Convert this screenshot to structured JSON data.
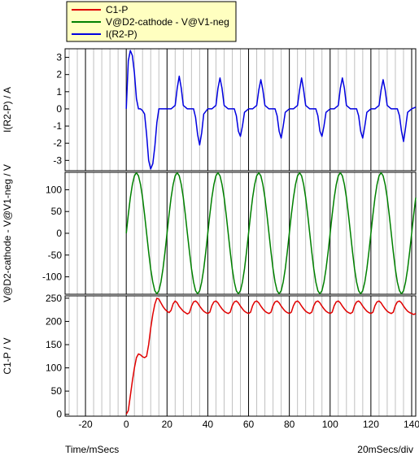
{
  "colors": {
    "c1p": "#e00000",
    "vdiff": "#008000",
    "ir2p": "#0000e0",
    "grid": "#c0c0c0",
    "legend_bg": "#ffffc0"
  },
  "legend": {
    "entries": [
      "C1-P",
      "V@D2-cathode - V@V1-neg",
      "I(R2-P)"
    ]
  },
  "footer": {
    "left": "Time/mSecs",
    "right": "20mSecs/div"
  },
  "chart_data": [
    {
      "type": "line",
      "ylabel": "I(R2-P) / A",
      "xlim": [
        -30,
        142
      ],
      "ylim": [
        -3.6,
        3.5
      ],
      "xticks": [
        -20,
        0,
        20,
        40,
        60,
        80,
        100,
        120,
        140
      ],
      "yticks": [
        -3,
        -2,
        -1,
        0,
        1,
        2,
        3
      ],
      "series": [
        {
          "name": "I(R2-P)",
          "color_key": "ir2p",
          "x": [
            0,
            1,
            2,
            3,
            4,
            5,
            6,
            7,
            8,
            9,
            10,
            11,
            12,
            13,
            14,
            15,
            16,
            17,
            18,
            20,
            22,
            24,
            25,
            26,
            27,
            28,
            30,
            32,
            33,
            34,
            35,
            36,
            37,
            38,
            40,
            42,
            44,
            45,
            46,
            47,
            48,
            50,
            52,
            53,
            54,
            55,
            56,
            57,
            58,
            60,
            62,
            64,
            65,
            66,
            67,
            68,
            70,
            72,
            73,
            74,
            75,
            76,
            77,
            78,
            80,
            82,
            84,
            85,
            86,
            87,
            88,
            90,
            92,
            93,
            94,
            95,
            96,
            97,
            98,
            100,
            102,
            104,
            105,
            106,
            107,
            108,
            110,
            112,
            113,
            114,
            115,
            116,
            117,
            118,
            120,
            122,
            124,
            125,
            126,
            127,
            128,
            130,
            132,
            133,
            134,
            135,
            136,
            137,
            138,
            140,
            142
          ],
          "values": [
            0,
            2.8,
            3.4,
            3.1,
            2.1,
            0.6,
            0,
            0,
            -0.1,
            -0.3,
            -1.5,
            -3.0,
            -3.5,
            -3.2,
            -2.2,
            -0.8,
            0,
            0,
            0,
            0,
            0,
            0.2,
            1.2,
            1.9,
            1.2,
            0.2,
            0,
            0,
            0,
            -0.5,
            -1.5,
            -2.1,
            -1.4,
            -0.3,
            0,
            0,
            0.2,
            1.2,
            1.8,
            1.2,
            0.2,
            0,
            0,
            0,
            -0.4,
            -1.3,
            -1.6,
            -1.0,
            -0.2,
            0,
            0,
            0.2,
            1.1,
            1.7,
            1.1,
            0.2,
            0,
            0,
            0,
            -0.4,
            -1.3,
            -1.7,
            -1.0,
            -0.2,
            0,
            0,
            0.2,
            1.1,
            1.8,
            1.1,
            0.2,
            0,
            0,
            0,
            -0.4,
            -1.3,
            -1.6,
            -1.0,
            -0.2,
            0,
            0,
            0.2,
            1.2,
            1.8,
            1.2,
            0.2,
            0,
            0,
            0,
            -0.4,
            -1.3,
            -1.7,
            -1.0,
            -0.2,
            0,
            0,
            0.2,
            1.1,
            1.7,
            1.1,
            0.2,
            0,
            0,
            0,
            -0.4,
            -1.3,
            -1.9,
            -1.1,
            -0.2,
            0,
            0.1
          ]
        }
      ]
    },
    {
      "type": "line",
      "ylabel": "V@D2-cathode - V@V1-neg / V",
      "xlim": [
        -30,
        142
      ],
      "ylim": [
        -140,
        140
      ],
      "xticks": [
        -20,
        0,
        20,
        40,
        60,
        80,
        100,
        120,
        140
      ],
      "yticks": [
        -100,
        -50,
        0,
        50,
        100
      ],
      "series": [
        {
          "name": "V@D2-cathode - V@V1-neg",
          "color_key": "vdiff",
          "x": [
            0,
            1,
            2,
            3,
            4,
            5,
            6,
            7,
            8,
            9,
            10,
            11,
            12,
            13,
            14,
            15,
            16,
            17,
            18,
            19,
            20,
            21,
            22,
            23,
            24,
            25,
            26,
            27,
            28,
            29,
            30,
            31,
            32,
            33,
            34,
            35,
            36,
            37,
            38,
            39,
            40,
            41,
            42,
            43,
            44,
            45,
            46,
            47,
            48,
            49,
            50,
            51,
            52,
            53,
            54,
            55,
            56,
            57,
            58,
            59,
            60,
            61,
            62,
            63,
            64,
            65,
            66,
            67,
            68,
            69,
            70,
            71,
            72,
            73,
            74,
            75,
            76,
            77,
            78,
            79,
            80,
            81,
            82,
            83,
            84,
            85,
            86,
            87,
            88,
            89,
            90,
            91,
            92,
            93,
            94,
            95,
            96,
            97,
            98,
            99,
            100,
            101,
            102,
            103,
            104,
            105,
            106,
            107,
            108,
            109,
            110,
            111,
            112,
            113,
            114,
            115,
            116,
            117,
            118,
            119,
            120,
            121,
            122,
            123,
            124,
            125,
            126,
            127,
            128,
            129,
            130,
            131,
            132,
            133,
            134,
            135,
            136,
            137,
            138,
            139,
            140,
            141,
            142
          ],
          "values": [
            0,
            43,
            82,
            112,
            132,
            139,
            132,
            112,
            82,
            43,
            0,
            -43,
            -82,
            -112,
            -132,
            -139,
            -132,
            -112,
            -82,
            -43,
            0,
            43,
            82,
            112,
            132,
            139,
            132,
            112,
            82,
            43,
            0,
            -43,
            -82,
            -112,
            -132,
            -139,
            -132,
            -112,
            -82,
            -43,
            0,
            43,
            82,
            112,
            132,
            139,
            132,
            112,
            82,
            43,
            0,
            -43,
            -82,
            -112,
            -132,
            -139,
            -132,
            -112,
            -82,
            -43,
            0,
            43,
            82,
            112,
            132,
            139,
            132,
            112,
            82,
            43,
            0,
            -43,
            -82,
            -112,
            -132,
            -139,
            -132,
            -112,
            -82,
            -43,
            0,
            43,
            82,
            112,
            132,
            139,
            132,
            112,
            82,
            43,
            0,
            -43,
            -82,
            -112,
            -132,
            -139,
            -132,
            -112,
            -82,
            -43,
            0,
            43,
            82,
            112,
            132,
            139,
            132,
            112,
            82,
            43,
            0,
            -43,
            -82,
            -112,
            -132,
            -139,
            -132,
            -112,
            -82,
            -43,
            0,
            43,
            82,
            112,
            132,
            139,
            132,
            112,
            82,
            43,
            0,
            -43,
            -82,
            -112,
            -132,
            -139,
            -132,
            -112,
            -82,
            -43,
            0,
            43,
            82
          ]
        }
      ]
    },
    {
      "type": "line",
      "ylabel": "C1-P / V",
      "xlabel": "Time/mSecs",
      "xlim": [
        -30,
        142
      ],
      "ylim": [
        -4,
        255
      ],
      "xticks": [
        -20,
        0,
        20,
        40,
        60,
        80,
        100,
        120,
        140
      ],
      "yticks": [
        0,
        50,
        100,
        150,
        200,
        250
      ],
      "series": [
        {
          "name": "C1-P",
          "color_key": "c1p",
          "x": [
            0,
            1,
            2,
            3,
            4,
            5,
            6,
            7,
            8,
            9,
            10,
            11,
            12,
            13,
            14,
            15,
            16,
            17,
            18,
            19,
            20,
            21,
            22,
            23,
            24,
            25,
            26,
            27,
            28,
            29,
            30,
            31,
            32,
            33,
            34,
            35,
            36,
            37,
            38,
            39,
            40,
            41,
            42,
            43,
            44,
            45,
            46,
            47,
            48,
            49,
            50,
            51,
            52,
            53,
            54,
            55,
            56,
            57,
            58,
            59,
            60,
            61,
            62,
            63,
            64,
            65,
            66,
            67,
            68,
            69,
            70,
            71,
            72,
            73,
            74,
            75,
            76,
            77,
            78,
            79,
            80,
            81,
            82,
            83,
            84,
            85,
            86,
            87,
            88,
            89,
            90,
            91,
            92,
            93,
            94,
            95,
            96,
            97,
            98,
            99,
            100,
            101,
            102,
            103,
            104,
            105,
            106,
            107,
            108,
            109,
            110,
            111,
            112,
            113,
            114,
            115,
            116,
            117,
            118,
            119,
            120,
            121,
            122,
            123,
            124,
            125,
            126,
            127,
            128,
            129,
            130,
            131,
            132,
            133,
            134,
            135,
            136,
            137,
            138,
            139,
            140,
            141,
            142
          ],
          "values": [
            0,
            8,
            40,
            72,
            100,
            122,
            130,
            128,
            124,
            122,
            125,
            150,
            185,
            215,
            237,
            250,
            248,
            240,
            232,
            226,
            222,
            219,
            224,
            238,
            244,
            240,
            232,
            227,
            222,
            219,
            216,
            219,
            233,
            242,
            244,
            240,
            233,
            227,
            222,
            219,
            217,
            220,
            234,
            242,
            244,
            240,
            233,
            227,
            222,
            219,
            217,
            220,
            234,
            242,
            244,
            240,
            233,
            227,
            222,
            219,
            217,
            220,
            234,
            242,
            244,
            240,
            233,
            227,
            222,
            219,
            217,
            220,
            234,
            242,
            244,
            240,
            233,
            227,
            222,
            219,
            217,
            220,
            234,
            242,
            244,
            240,
            233,
            227,
            222,
            219,
            217,
            220,
            234,
            242,
            244,
            240,
            233,
            227,
            222,
            219,
            217,
            220,
            234,
            242,
            244,
            240,
            233,
            227,
            222,
            219,
            217,
            220,
            234,
            242,
            244,
            240,
            233,
            227,
            222,
            219,
            217,
            220,
            234,
            242,
            244,
            240,
            233,
            227,
            222,
            219,
            217,
            220,
            234,
            242,
            244,
            240,
            233,
            227,
            222,
            219,
            217,
            215,
            217
          ]
        }
      ]
    }
  ]
}
